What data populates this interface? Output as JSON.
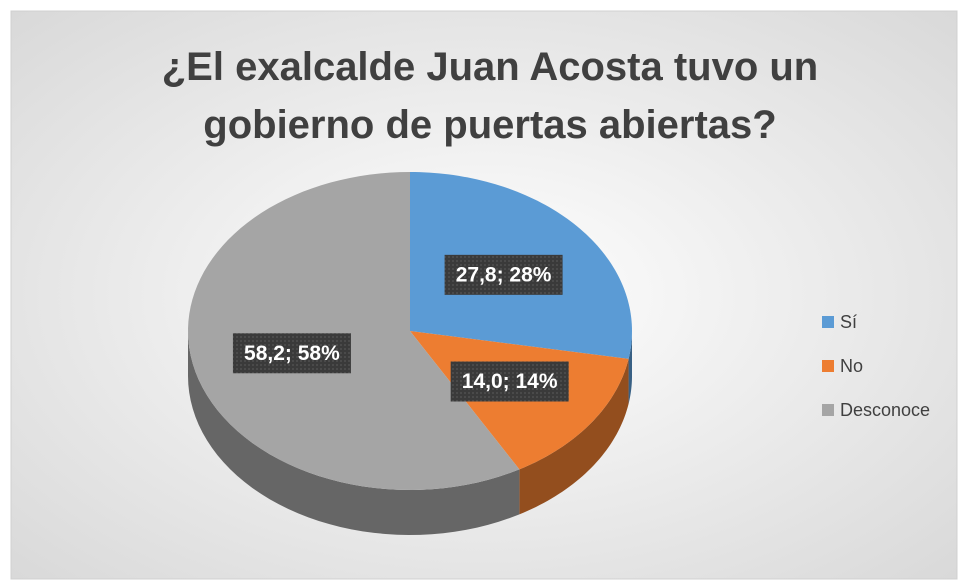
{
  "chart_data": {
    "type": "pie",
    "title": "¿El exalcalde Juan Acosta tuvo un gobierno de puertas abiertas?",
    "categories": [
      "Sí",
      "No",
      "Desconoce"
    ],
    "values": [
      27.8,
      14.0,
      58.2
    ],
    "value_labels": [
      "27,8; 28%",
      "14,0; 14%",
      "58,2; 58%"
    ],
    "colors": [
      "#5b9bd5",
      "#ed7d31",
      "#a5a5a5"
    ],
    "legend": "right"
  }
}
